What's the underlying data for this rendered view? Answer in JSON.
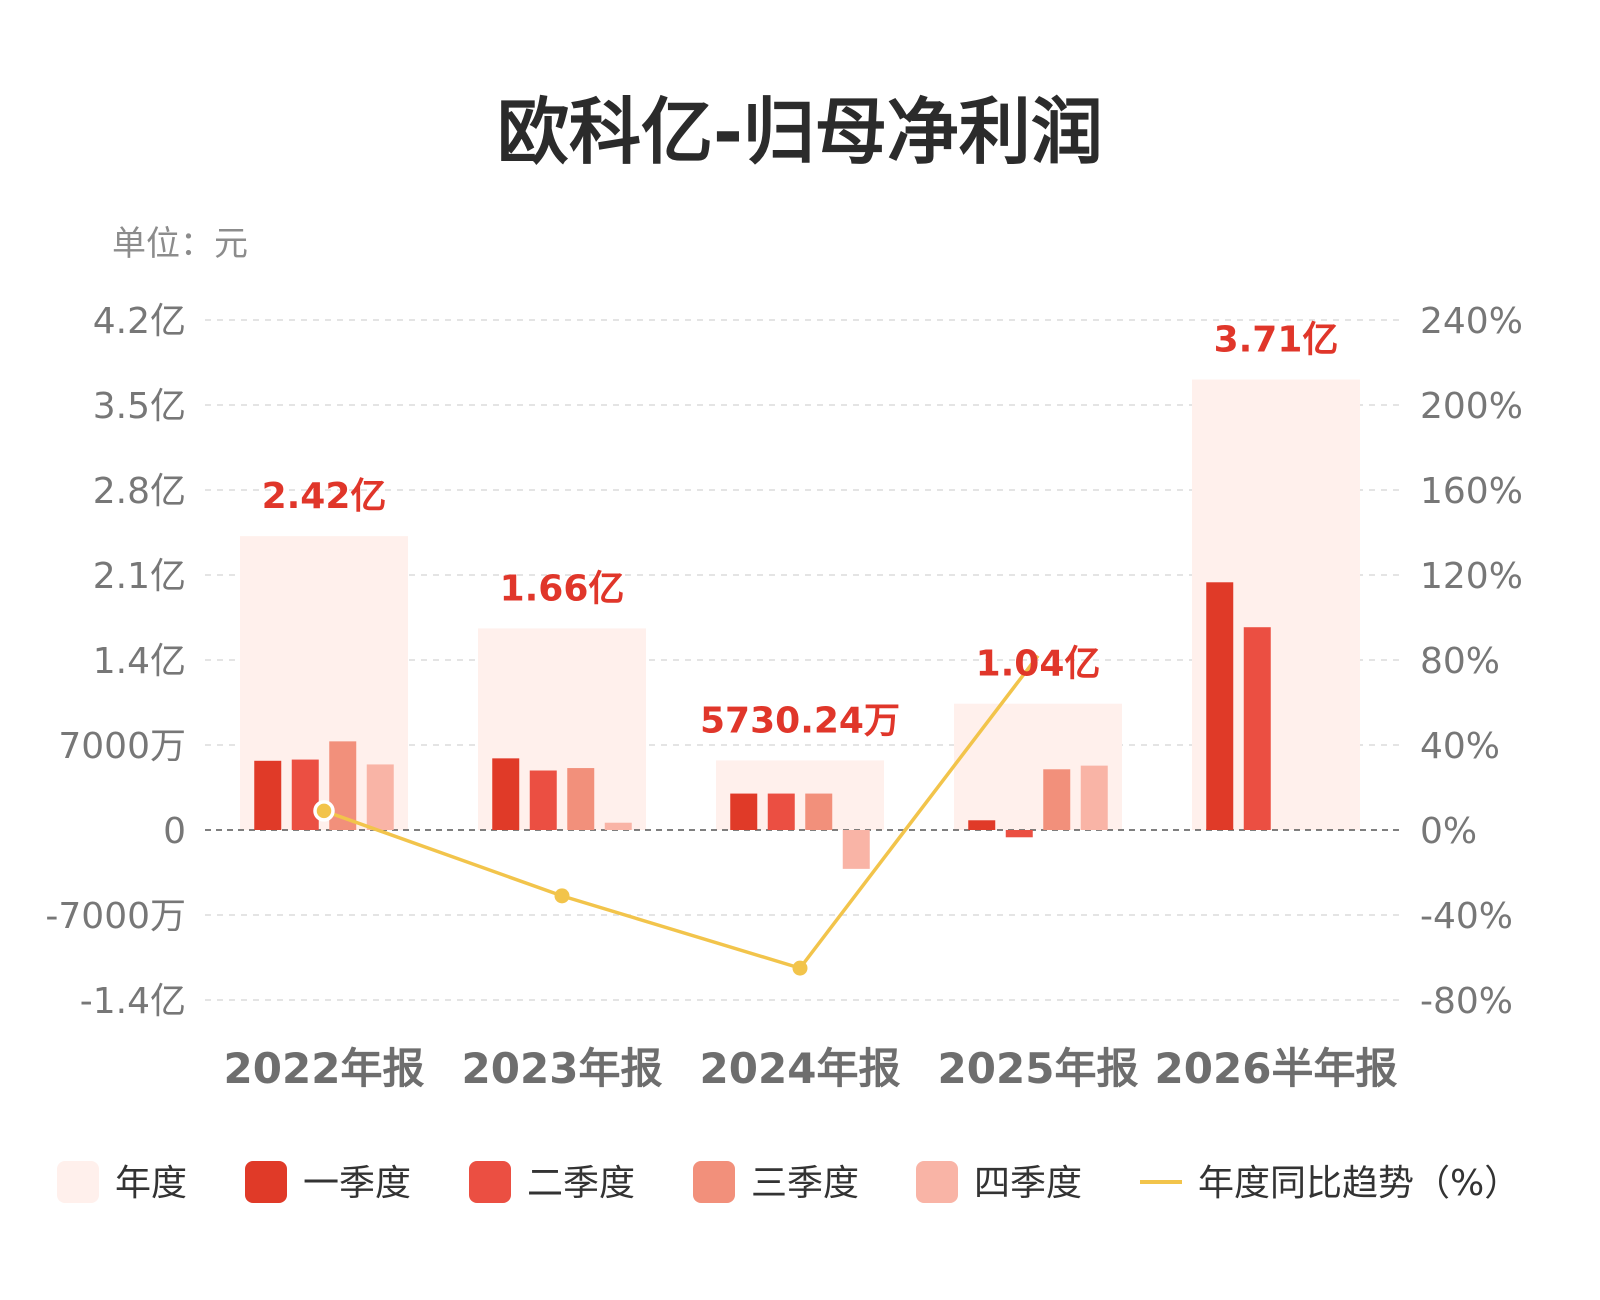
{
  "chart_data": {
    "type": "bar",
    "title": "欧科亿-归母净利润",
    "unit_label": "单位：元",
    "categories": [
      "2022年报",
      "2023年报",
      "2024年报",
      "2025年报",
      "2026半年报"
    ],
    "annual": {
      "name": "年度",
      "values": [
        242000000,
        166000000,
        57302400,
        104000000,
        371000000
      ],
      "labels": [
        "2.42亿",
        "1.66亿",
        "5730.24万",
        "1.04亿",
        "3.71亿"
      ]
    },
    "series": [
      {
        "name": "一季度",
        "values": [
          57000000,
          59000000,
          30000000,
          8000000,
          204000000
        ]
      },
      {
        "name": "二季度",
        "values": [
          58000000,
          49000000,
          30000000,
          -6000000,
          167000000
        ]
      },
      {
        "name": "三季度",
        "values": [
          73000000,
          51000000,
          30000000,
          50000000,
          null
        ]
      },
      {
        "name": "四季度",
        "values": [
          54000000,
          6000000,
          -32000000,
          53000000,
          null
        ]
      }
    ],
    "trend": {
      "name": "年度同比趋势（%）",
      "values": [
        9,
        -31,
        -65,
        82,
        null
      ]
    },
    "y_left": {
      "ylim": [
        -140000000,
        420000000
      ],
      "ticks": [
        420000000,
        350000000,
        280000000,
        210000000,
        140000000,
        70000000,
        0,
        -70000000,
        -140000000
      ],
      "tick_labels": [
        "4.2亿",
        "3.5亿",
        "2.8亿",
        "2.1亿",
        "1.4亿",
        "7000万",
        "0",
        "-7000万",
        "-1.4亿"
      ]
    },
    "y_right": {
      "ylim": [
        -80,
        240
      ],
      "ticks": [
        240,
        200,
        160,
        120,
        80,
        40,
        0,
        -40,
        -80
      ],
      "tick_labels": [
        "240%",
        "200%",
        "160%",
        "120%",
        "80%",
        "40%",
        "0%",
        "-40%",
        "-80%"
      ]
    },
    "grid": true,
    "legend_position": "bottom",
    "colors": {
      "annual": "#fff0ec",
      "q1": "#e03a28",
      "q2": "#eb4f42",
      "q3": "#f2907b",
      "q4": "#f9b4a6",
      "trend": "#f2c44b",
      "annotation": "#e0362a"
    },
    "legend": [
      {
        "label": "年度",
        "key": "annual",
        "kind": "box"
      },
      {
        "label": "一季度",
        "key": "q1",
        "kind": "box"
      },
      {
        "label": "二季度",
        "key": "q2",
        "kind": "box"
      },
      {
        "label": "三季度",
        "key": "q3",
        "kind": "box"
      },
      {
        "label": "四季度",
        "key": "q4",
        "kind": "box"
      },
      {
        "label": "年度同比趋势（%）",
        "key": "trend",
        "kind": "line"
      }
    ]
  }
}
